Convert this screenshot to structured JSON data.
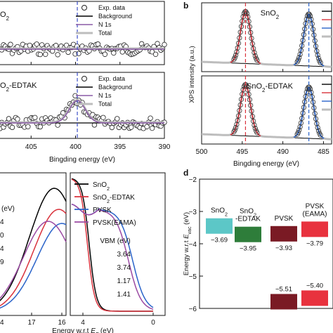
{
  "chart_data": [
    {
      "id": "a",
      "type": "scatter",
      "panel_label": "",
      "xlabel": "Bingding energy (eV)",
      "ylabel": "",
      "xlim": [
        390,
        408.5
      ],
      "x_reversed": true,
      "xticks": [
        405,
        400,
        395,
        390
      ],
      "dashed_line_x": 399.8,
      "dashed_line_color": "#3b4fc8",
      "legend": [
        "Exp. data",
        "Background",
        "N 1s",
        "Total"
      ],
      "subpanels": [
        {
          "name": "SnO2",
          "label": "O2",
          "label_sub": "2",
          "peak": {
            "center": 399.8,
            "height": 0,
            "width": 1.0
          }
        },
        {
          "name": "SnO2-EDTAK",
          "label": "O2-EDTAK",
          "label_sub": "2",
          "peak": {
            "center": 399.8,
            "height": 0.55,
            "width": 0.9
          }
        }
      ]
    },
    {
      "id": "b",
      "type": "scatter",
      "panel_label": "b",
      "xlabel": "Bingding energy (eV)",
      "ylabel": "XPS intensity (a.u.)",
      "xlim": [
        484,
        500
      ],
      "x_reversed": true,
      "xticks": [
        500,
        495,
        490,
        485
      ],
      "dashed_lines": [
        {
          "x": 494.6,
          "color": "#d9323c"
        },
        {
          "x": 486.8,
          "color": "#2a63c9"
        }
      ],
      "legend_colors": [
        "#000000",
        "#d9323c",
        "#2a63c9",
        "#bdbdbd"
      ],
      "peaks": [
        {
          "center": 494.6,
          "width": 0.62
        },
        {
          "center": 486.8,
          "width": 0.62
        }
      ],
      "subpanels": [
        {
          "name": "SnO2",
          "label": "SnO2",
          "label_sub": "2"
        },
        {
          "name": "SnO2-EDTAK",
          "label": "SnO2-EDTAK",
          "label_sub": "2"
        }
      ]
    },
    {
      "id": "c",
      "type": "line",
      "panel_label": "",
      "xlabel": "Energy w.r.t E_F (eV)",
      "left_xticks": [
        "17",
        "16"
      ],
      "left_xtick_values": [
        17,
        16
      ],
      "right_xticks": [
        "4",
        "0"
      ],
      "right_xtick_values": [
        4,
        0
      ],
      "left_partial_ticks": [
        "4",
        "4"
      ],
      "vbm_title": "VBM (eV)",
      "partial_labels": [
        "(eV)",
        "4",
        "0",
        "4",
        "9"
      ],
      "series": [
        {
          "name": "SnO2",
          "legend": "SnO2",
          "color": "#000000",
          "vbm": "3.64"
        },
        {
          "name": "SnO2-EDTAK",
          "legend": "SnO2-EDTAK",
          "color": "#d9323c",
          "vbm": "3.74"
        },
        {
          "name": "PVSK",
          "legend": "PVSK",
          "color": "#2a63c9",
          "vbm": "1.17"
        },
        {
          "name": "PVSK(EAMA)",
          "legend": "PVSK(EAMA)",
          "color": "#9b4aa3",
          "vbm": "1.41"
        }
      ]
    },
    {
      "id": "d",
      "type": "bar",
      "panel_label": "d",
      "ylabel": "Energy w.r.t E_vac (eV)",
      "ylim": [
        -6,
        -2
      ],
      "yticks": [
        "−2",
        "−3",
        "−4",
        "−5",
        "−6"
      ],
      "ytick_values": [
        -2,
        -3,
        -4,
        -5,
        -6
      ],
      "materials": [
        {
          "name": "SnO2",
          "label": "SnO2",
          "color": "#5cc7c7",
          "cb": -3.69,
          "cb_label": "−3.69",
          "vb": null,
          "vb_label": ""
        },
        {
          "name": "SnO2-EDTAK",
          "label": "SnO2 -EDTAK",
          "color": "#2e7d3a",
          "cb": -3.95,
          "cb_label": "−3.95",
          "vb": null,
          "vb_label": ""
        },
        {
          "name": "PVSK",
          "label": "PVSK",
          "color": "#7a1a24",
          "cb": -3.93,
          "cb_label": "−3.93",
          "vb": -5.51,
          "vb_label": "−5.51"
        },
        {
          "name": "PVSK(EAMA)",
          "label": "PVSK (EAMA)",
          "color": "#e8323e",
          "cb": -3.79,
          "cb_label": "−3.79",
          "vb": -5.4,
          "vb_label": "−5.40"
        }
      ]
    }
  ]
}
